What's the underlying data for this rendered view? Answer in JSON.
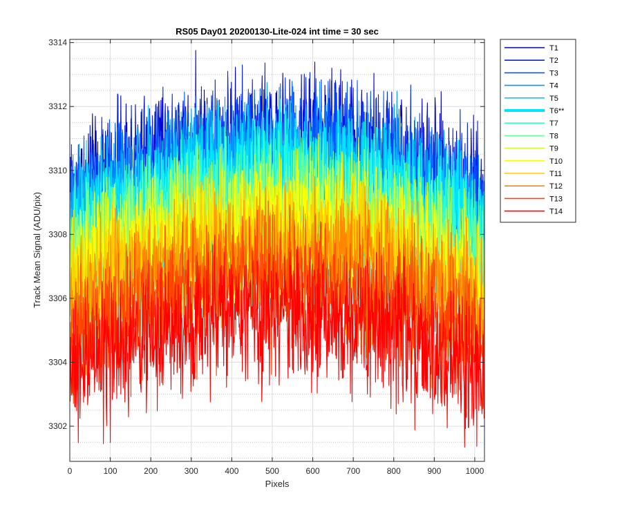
{
  "chart_data": {
    "type": "line",
    "title": "RS05 Day01 20200130-Lite-024 int time = 30 sec",
    "xlabel": "Pixels",
    "ylabel": "Track Mean Signal (ADU/pix)",
    "xlim": [
      0,
      1024
    ],
    "ylim": [
      3300.9,
      3314.1
    ],
    "xticks": [
      0,
      100,
      200,
      300,
      400,
      500,
      600,
      700,
      800,
      900,
      1000
    ],
    "yticks": [
      3302,
      3304,
      3306,
      3308,
      3310,
      3312,
      3314
    ],
    "grid": "on (major solid, minor dotted)",
    "legend_position": "outside-right",
    "noise_amplitude": 1.5,
    "series": [
      {
        "name": "T1",
        "color": "#0000cc",
        "highlight": false,
        "center_edge": 3309.0,
        "center_mid": 3311.0
      },
      {
        "name": "T2",
        "color": "#0022ee",
        "highlight": false,
        "center_edge": 3308.8,
        "center_mid": 3310.8
      },
      {
        "name": "T3",
        "color": "#0055ff",
        "highlight": false,
        "center_edge": 3308.5,
        "center_mid": 3310.5
      },
      {
        "name": "T4",
        "color": "#0099ff",
        "highlight": false,
        "center_edge": 3308.2,
        "center_mid": 3310.2
      },
      {
        "name": "T5",
        "color": "#00ccff",
        "highlight": false,
        "center_edge": 3308.0,
        "center_mid": 3309.9
      },
      {
        "name": "T6**",
        "color": "#00e5ff",
        "highlight": true,
        "center_edge": 3307.8,
        "center_mid": 3309.7
      },
      {
        "name": "T7",
        "color": "#33ffcc",
        "highlight": false,
        "center_edge": 3307.4,
        "center_mid": 3309.3
      },
      {
        "name": "T8",
        "color": "#66ff99",
        "highlight": false,
        "center_edge": 3307.1,
        "center_mid": 3309.0
      },
      {
        "name": "T9",
        "color": "#ccff33",
        "highlight": false,
        "center_edge": 3306.8,
        "center_mid": 3308.6
      },
      {
        "name": "T10",
        "color": "#ffff00",
        "highlight": false,
        "center_edge": 3306.5,
        "center_mid": 3308.3
      },
      {
        "name": "T11",
        "color": "#ffcc00",
        "highlight": false,
        "center_edge": 3306.0,
        "center_mid": 3307.8
      },
      {
        "name": "T12",
        "color": "#ff8800",
        "highlight": false,
        "center_edge": 3305.4,
        "center_mid": 3307.3
      },
      {
        "name": "T13",
        "color": "#ff4400",
        "highlight": false,
        "center_edge": 3304.6,
        "center_mid": 3306.5
      },
      {
        "name": "T14",
        "color": "#ff0000",
        "highlight": false,
        "center_edge": 3303.6,
        "center_mid": 3305.5
      }
    ]
  }
}
